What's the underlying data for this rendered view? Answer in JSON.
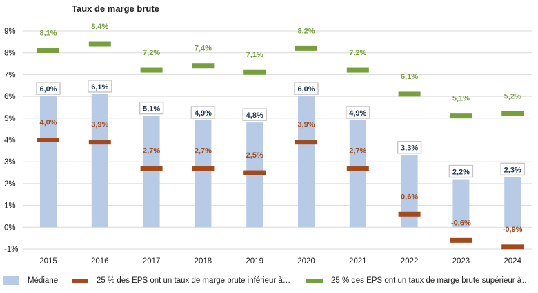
{
  "chart_data": {
    "type": "bar",
    "title": "Taux de marge brute",
    "categories": [
      "2015",
      "2016",
      "2017",
      "2018",
      "2019",
      "2020",
      "2021",
      "2022",
      "2023",
      "2024"
    ],
    "series": [
      {
        "name": "Médiane",
        "kind": "bar",
        "color": "#b7cbe6",
        "values": [
          6.0,
          6.1,
          5.1,
          4.9,
          4.8,
          6.0,
          4.9,
          3.3,
          2.2,
          2.3
        ],
        "labels": [
          "6,0%",
          "6,1%",
          "5,1%",
          "4,9%",
          "4,8%",
          "6,0%",
          "4,9%",
          "3,3%",
          "2,2%",
          "2,3%"
        ]
      },
      {
        "name": "25 % des EPS ont un taux de marge brute inférieur à…",
        "kind": "marker",
        "color": "#a24a1c",
        "values": [
          4.0,
          3.9,
          2.7,
          2.7,
          2.5,
          3.9,
          2.7,
          0.6,
          -0.6,
          -0.9
        ],
        "labels": [
          "4,0%",
          "3,9%",
          "2,7%",
          "2,7%",
          "2,5%",
          "3,9%",
          "2,7%",
          "0,6%",
          "-0,6%",
          "-0,9%"
        ]
      },
      {
        "name": "25 % des EPS ont un taux de marge brute supérieur à…",
        "kind": "marker",
        "color": "#76a03c",
        "values": [
          8.1,
          8.4,
          7.2,
          7.4,
          7.1,
          8.2,
          7.2,
          6.1,
          5.1,
          5.2
        ],
        "labels": [
          "8,1%",
          "8,4%",
          "7,2%",
          "7,4%",
          "7,1%",
          "8,2%",
          "7,2%",
          "6,1%",
          "5,1%",
          "5,2%"
        ]
      }
    ],
    "y_ticks": [
      "9%",
      "8%",
      "7%",
      "6%",
      "5%",
      "4%",
      "3%",
      "2%",
      "1%",
      "0%",
      "-1%"
    ],
    "y_tick_values": [
      9,
      8,
      7,
      6,
      5,
      4,
      3,
      2,
      1,
      0,
      -1
    ],
    "ylim": [
      -1,
      9
    ],
    "grid": true,
    "legend_position": "bottom"
  }
}
